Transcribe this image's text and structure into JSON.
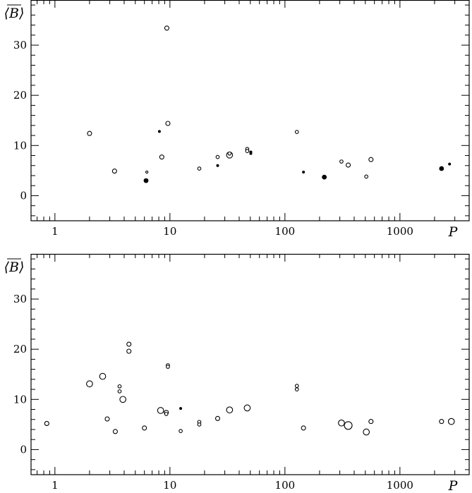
{
  "chart_data": [
    {
      "type": "scatter",
      "panel": "top",
      "title": "",
      "xlabel": "P",
      "ylabel": "⟨B⟩",
      "x_scale": "log",
      "xlim": [
        0.62,
        4000
      ],
      "ylim": [
        -5,
        39
      ],
      "x_tick_labels": [
        "1",
        "10",
        "100",
        "1000"
      ],
      "y_tick_labels": [
        "0",
        "10",
        "20",
        "30"
      ],
      "grid": false,
      "legend": "none",
      "points": [
        {
          "x": 2.0,
          "y": 12.4,
          "size": "medium",
          "style": "open"
        },
        {
          "x": 3.3,
          "y": 4.9,
          "size": "medium",
          "style": "open"
        },
        {
          "x": 6.3,
          "y": 4.7,
          "size": "tiny",
          "style": "open"
        },
        {
          "x": 6.2,
          "y": 3.0,
          "size": "medium",
          "style": "filled"
        },
        {
          "x": 8.1,
          "y": 12.8,
          "size": "tiny",
          "style": "filled"
        },
        {
          "x": 8.5,
          "y": 7.7,
          "size": "medium",
          "style": "open"
        },
        {
          "x": 9.4,
          "y": 33.4,
          "size": "medium",
          "style": "open"
        },
        {
          "x": 9.6,
          "y": 14.4,
          "size": "medium",
          "style": "open"
        },
        {
          "x": 18.0,
          "y": 5.4,
          "size": "small",
          "style": "open"
        },
        {
          "x": 26.0,
          "y": 7.7,
          "size": "small",
          "style": "open"
        },
        {
          "x": 26.0,
          "y": 6.0,
          "size": "tiny",
          "style": "filled"
        },
        {
          "x": 33.0,
          "y": 8.1,
          "size": "large",
          "style": "open"
        },
        {
          "x": 33.0,
          "y": 8.4,
          "size": "small",
          "style": "open"
        },
        {
          "x": 47.0,
          "y": 9.3,
          "size": "small",
          "style": "open"
        },
        {
          "x": 47.0,
          "y": 8.9,
          "size": "small",
          "style": "open"
        },
        {
          "x": 50.5,
          "y": 8.7,
          "size": "tiny",
          "style": "filled"
        },
        {
          "x": 50.5,
          "y": 8.4,
          "size": "tiny",
          "style": "filled"
        },
        {
          "x": 127.0,
          "y": 12.7,
          "size": "small",
          "style": "open"
        },
        {
          "x": 145.0,
          "y": 4.7,
          "size": "tiny",
          "style": "filled"
        },
        {
          "x": 220.0,
          "y": 3.7,
          "size": "medium",
          "style": "filled"
        },
        {
          "x": 310.0,
          "y": 6.8,
          "size": "small",
          "style": "open"
        },
        {
          "x": 355.0,
          "y": 6.1,
          "size": "medium",
          "style": "open"
        },
        {
          "x": 510.0,
          "y": 3.8,
          "size": "small",
          "style": "open"
        },
        {
          "x": 560.0,
          "y": 7.2,
          "size": "medium",
          "style": "open"
        },
        {
          "x": 2300.0,
          "y": 5.4,
          "size": "medium",
          "style": "filled"
        },
        {
          "x": 2700.0,
          "y": 6.3,
          "size": "tiny",
          "style": "filled"
        }
      ]
    },
    {
      "type": "scatter",
      "panel": "bottom",
      "title": "",
      "xlabel": "P",
      "ylabel": "⟨B⟩",
      "x_scale": "log",
      "xlim": [
        0.62,
        4000
      ],
      "ylim": [
        -5,
        39
      ],
      "x_tick_labels": [
        "1",
        "10",
        "100",
        "1000"
      ],
      "y_tick_labels": [
        "0",
        "10",
        "20",
        "30"
      ],
      "grid": false,
      "legend": "none",
      "points": [
        {
          "x": 0.85,
          "y": 5.2,
          "size": "medium",
          "style": "open"
        },
        {
          "x": 2.0,
          "y": 13.1,
          "size": "large",
          "style": "open"
        },
        {
          "x": 2.6,
          "y": 14.6,
          "size": "large",
          "style": "open"
        },
        {
          "x": 2.85,
          "y": 6.1,
          "size": "medium",
          "style": "open"
        },
        {
          "x": 3.35,
          "y": 3.6,
          "size": "medium",
          "style": "open"
        },
        {
          "x": 3.65,
          "y": 12.6,
          "size": "small",
          "style": "open"
        },
        {
          "x": 3.65,
          "y": 11.6,
          "size": "small",
          "style": "open"
        },
        {
          "x": 3.9,
          "y": 10.0,
          "size": "large",
          "style": "open"
        },
        {
          "x": 4.4,
          "y": 21.0,
          "size": "medium",
          "style": "open"
        },
        {
          "x": 4.4,
          "y": 19.6,
          "size": "medium",
          "style": "open"
        },
        {
          "x": 6.0,
          "y": 4.3,
          "size": "medium",
          "style": "open"
        },
        {
          "x": 8.3,
          "y": 7.8,
          "size": "large",
          "style": "open"
        },
        {
          "x": 9.3,
          "y": 7.4,
          "size": "medium",
          "style": "open"
        },
        {
          "x": 9.3,
          "y": 7.1,
          "size": "small",
          "style": "open"
        },
        {
          "x": 9.6,
          "y": 16.8,
          "size": "small",
          "style": "open"
        },
        {
          "x": 9.6,
          "y": 16.5,
          "size": "small",
          "style": "open"
        },
        {
          "x": 12.4,
          "y": 8.2,
          "size": "tiny",
          "style": "filled"
        },
        {
          "x": 12.4,
          "y": 3.7,
          "size": "small",
          "style": "open"
        },
        {
          "x": 18.0,
          "y": 5.5,
          "size": "small",
          "style": "open"
        },
        {
          "x": 18.0,
          "y": 5.0,
          "size": "small",
          "style": "open"
        },
        {
          "x": 26.0,
          "y": 6.2,
          "size": "medium",
          "style": "open"
        },
        {
          "x": 33.0,
          "y": 7.9,
          "size": "large",
          "style": "open"
        },
        {
          "x": 47.0,
          "y": 8.3,
          "size": "large",
          "style": "open"
        },
        {
          "x": 127.0,
          "y": 12.7,
          "size": "small",
          "style": "open"
        },
        {
          "x": 127.0,
          "y": 12.0,
          "size": "small",
          "style": "open"
        },
        {
          "x": 145.0,
          "y": 4.3,
          "size": "medium",
          "style": "open"
        },
        {
          "x": 310.0,
          "y": 5.3,
          "size": "large",
          "style": "open"
        },
        {
          "x": 355.0,
          "y": 4.8,
          "size": "xlarge",
          "style": "open"
        },
        {
          "x": 510.0,
          "y": 3.5,
          "size": "large",
          "style": "open"
        },
        {
          "x": 560.0,
          "y": 5.6,
          "size": "medium",
          "style": "open"
        },
        {
          "x": 2300.0,
          "y": 5.6,
          "size": "medium",
          "style": "open"
        },
        {
          "x": 2800.0,
          "y": 5.6,
          "size": "large",
          "style": "open"
        }
      ]
    }
  ]
}
